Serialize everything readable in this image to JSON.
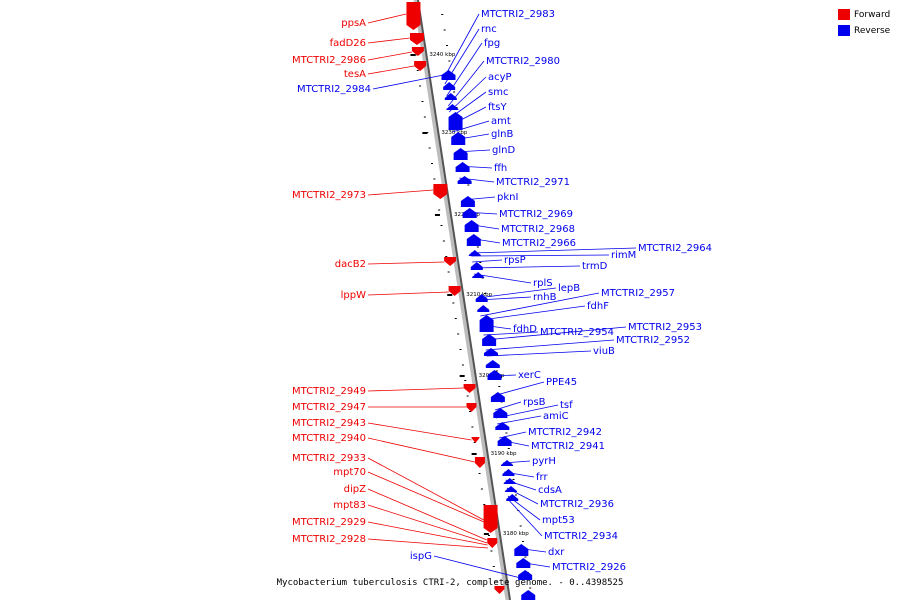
{
  "legend": {
    "forward_label": "Forward",
    "reverse_label": "Reverse",
    "forward_color": "#ee0000",
    "reverse_color": "#0000ee"
  },
  "caption": "Mycobacterium tuberculosis CTRI-2, complete genome. - 0..4398525",
  "scale_labels": [
    "3240 kbp",
    "3230 kbp",
    "3220 kbp",
    "3210 kbp",
    "3200 kbp",
    "3190 kbp",
    "3180 kbp"
  ],
  "forward_genes": [
    "ppsA",
    "fadD26",
    "MTCTRI2_2986",
    "tesA",
    "MTCTRI2_2973",
    "dacB2",
    "lppW",
    "MTCTRI2_2949",
    "MTCTRI2_2947",
    "MTCTRI2_2943",
    "MTCTRI2_2940",
    "MTCTRI2_2933",
    "mpt70",
    "dipZ",
    "mpt83",
    "MTCTRI2_2929",
    "MTCTRI2_2928"
  ],
  "reverse_genes": [
    "MTCTRI2_2984",
    "MTCTRI2_2983",
    "rnc",
    "fpg",
    "MTCTRI2_2980",
    "acyP",
    "smc",
    "ftsY",
    "amt",
    "glnB",
    "glnD",
    "ffh",
    "MTCTRI2_2971",
    "pknI",
    "MTCTRI2_2969",
    "MTCTRI2_2968",
    "MTCTRI2_2966",
    "MTCTRI2_2964",
    "rimM",
    "rpsP",
    "trmD",
    "rplS",
    "lepB",
    "rnhB",
    "MTCTRI2_2957",
    "fdhF",
    "fdhD",
    "MTCTRI2_2954",
    "MTCTRI2_2953",
    "MTCTRI2_2952",
    "viuB",
    "xerC",
    "PPE45",
    "rpsB",
    "tsf",
    "amiC",
    "MTCTRI2_2942",
    "MTCTRI2_2941",
    "pyrH",
    "frr",
    "cdsA",
    "MTCTRI2_2936",
    "mpt53",
    "MTCTRI2_2934",
    "ispG",
    "dxr",
    "MTCTRI2_2926"
  ]
}
